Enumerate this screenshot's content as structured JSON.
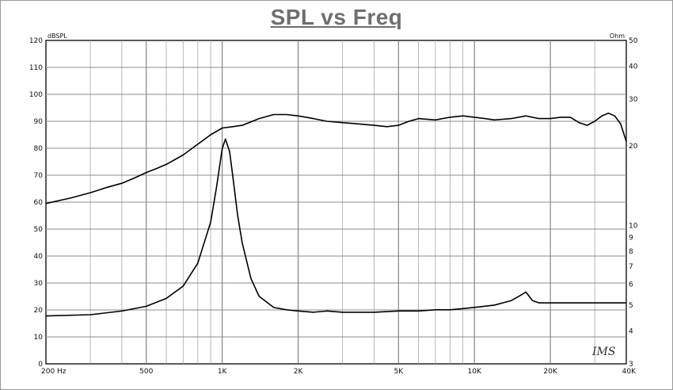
{
  "chart_data": {
    "type": "line",
    "title": "SPL vs Freq",
    "x_axis": {
      "scale": "log",
      "range": [
        200,
        40000
      ],
      "tick_labels": [
        {
          "value": 200,
          "label": "200 Hz"
        },
        {
          "value": 500,
          "label": "500"
        },
        {
          "value": 1000,
          "label": "1K"
        },
        {
          "value": 2000,
          "label": "2K"
        },
        {
          "value": 5000,
          "label": "5K"
        },
        {
          "value": 10000,
          "label": "10K"
        },
        {
          "value": 20000,
          "label": "20K"
        },
        {
          "value": 40000,
          "label": "40K"
        }
      ]
    },
    "y_left": {
      "unit": "dBSPL",
      "range": [
        0,
        120
      ],
      "ticks": [
        0,
        10,
        20,
        30,
        40,
        50,
        60,
        70,
        80,
        90,
        100,
        110,
        120
      ]
    },
    "y_right": {
      "unit": "Ohm",
      "scale": "log",
      "range": [
        3,
        50
      ],
      "ticks": [
        3,
        4,
        5,
        6,
        7,
        8,
        9,
        10,
        20,
        30,
        40,
        50
      ]
    },
    "grid": true,
    "series": [
      {
        "axis": "left",
        "x": [
          200,
          250,
          300,
          350,
          400,
          450,
          500,
          550,
          600,
          700,
          800,
          900,
          1000,
          1100,
          1200,
          1400,
          1600,
          1800,
          2000,
          2300,
          2600,
          3000,
          3500,
          4000,
          4500,
          5000,
          5500,
          6000,
          7000,
          8000,
          9000,
          10000,
          11000,
          12000,
          14000,
          16000,
          18000,
          20000,
          22000,
          24000,
          26000,
          28000,
          30000,
          32000,
          34000,
          36000,
          38000,
          40000
        ],
        "y": [
          59.5,
          61.5,
          63.5,
          65.5,
          67,
          69,
          71,
          72.5,
          74,
          77.5,
          81.5,
          85,
          87.5,
          88,
          88.5,
          91,
          92.5,
          92.5,
          92,
          91,
          90,
          89.5,
          89,
          88.5,
          88,
          88.5,
          90,
          91,
          90.5,
          91.5,
          92,
          91.5,
          91,
          90.5,
          91,
          92,
          91,
          91,
          91.5,
          91.5,
          89.5,
          88.5,
          90,
          92,
          93,
          92,
          89,
          82.5
        ]
      },
      {
        "axis": "right",
        "x": [
          200,
          300,
          400,
          500,
          600,
          700,
          800,
          900,
          950,
          1000,
          1030,
          1070,
          1100,
          1150,
          1200,
          1300,
          1400,
          1600,
          1800,
          2000,
          2300,
          2600,
          3000,
          3500,
          4000,
          5000,
          6000,
          7000,
          8000,
          9000,
          10000,
          12000,
          14000,
          15000,
          16000,
          17000,
          18000,
          20000,
          25000,
          30000,
          35000,
          40000
        ],
        "y": [
          4.55,
          4.6,
          4.75,
          4.95,
          5.3,
          5.9,
          7.2,
          10.3,
          14,
          19.5,
          21.2,
          19,
          15.5,
          11,
          8.6,
          6.3,
          5.4,
          4.9,
          4.8,
          4.75,
          4.7,
          4.75,
          4.7,
          4.7,
          4.7,
          4.75,
          4.75,
          4.8,
          4.8,
          4.85,
          4.9,
          5.0,
          5.2,
          5.4,
          5.6,
          5.2,
          5.1,
          5.1,
          5.1,
          5.1,
          5.1,
          5.1
        ]
      }
    ],
    "signature": "IMS"
  }
}
